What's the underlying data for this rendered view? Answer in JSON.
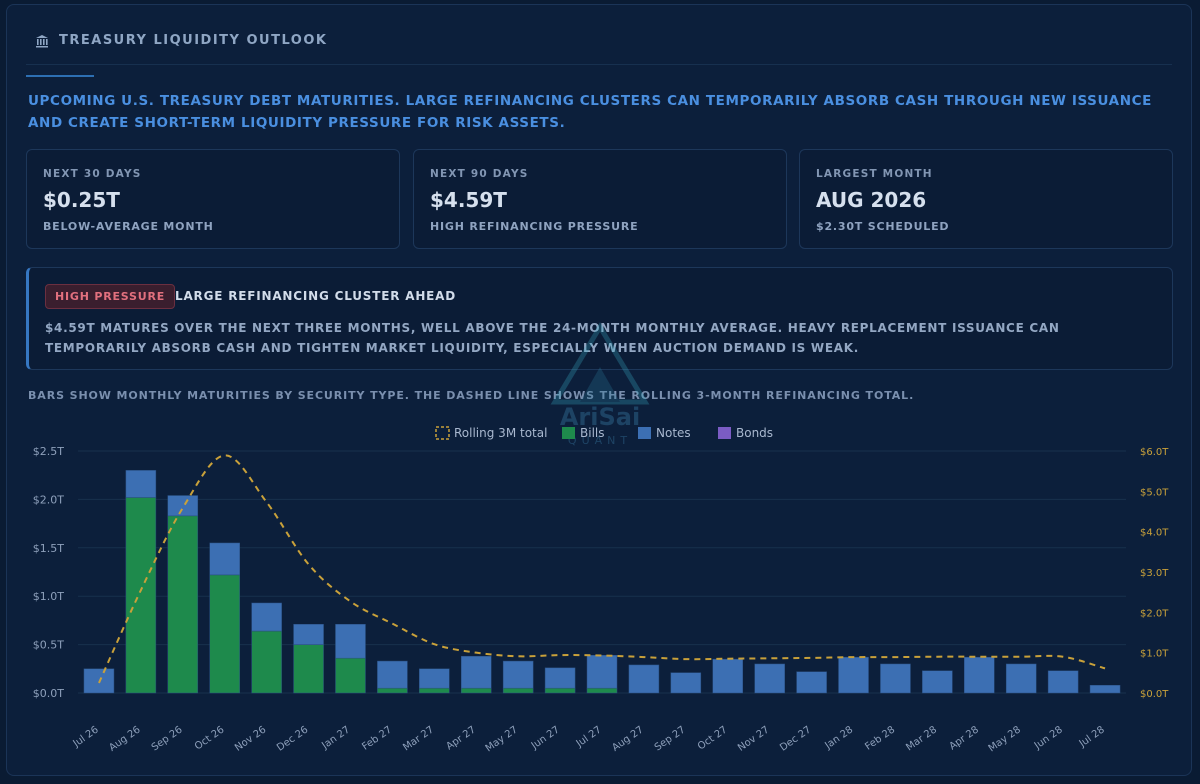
{
  "header": {
    "title": "TREASURY LIQUIDITY OUTLOOK",
    "icon": "bank-icon"
  },
  "intro": "Upcoming U.S. Treasury debt maturities. Large refinancing clusters can temporarily absorb cash through new issuance and create short-term liquidity pressure for risk assets.",
  "cards": [
    {
      "label": "NEXT 30 DAYS",
      "value": "$0.25T",
      "sub": "BELOW-AVERAGE MONTH"
    },
    {
      "label": "NEXT 90 DAYS",
      "value": "$4.59T",
      "sub": "HIGH REFINANCING PRESSURE"
    },
    {
      "label": "LARGEST MONTH",
      "value": "AUG 2026",
      "sub": "$2.30T SCHEDULED"
    }
  ],
  "alert": {
    "badge": "HIGH PRESSURE",
    "title": "LARGE REFINANCING CLUSTER AHEAD",
    "body": "$4.59T MATURES OVER THE NEXT THREE MONTHS, WELL ABOVE THE 24-MONTH MONTHLY AVERAGE. HEAVY REPLACEMENT ISSUANCE CAN TEMPORARILY ABSORB CASH AND TIGHTEN MARKET LIQUIDITY, ESPECIALLY WHEN AUCTION DEMAND IS WEAK."
  },
  "chart_note": "BARS SHOW MONTHLY MATURITIES BY SECURITY TYPE. THE DASHED LINE SHOWS THE ROLLING 3-MONTH REFINANCING TOTAL.",
  "watermark": {
    "line1": "AriSai",
    "line2": "QUANT"
  },
  "colors": {
    "bills": "#1e8a4c",
    "notes": "#3c6fb3",
    "bonds": "#7b5cc4",
    "rolling": "#c9a13a"
  },
  "chart_data": {
    "type": "bar",
    "stacked": true,
    "categories": [
      "Jul 26",
      "Aug 26",
      "Sep 26",
      "Oct 26",
      "Nov 26",
      "Dec 26",
      "Jan 27",
      "Feb 27",
      "Mar 27",
      "Apr 27",
      "May 27",
      "Jun 27",
      "Jul 27",
      "Aug 27",
      "Sep 27",
      "Oct 27",
      "Nov 27",
      "Dec 27",
      "Jan 28",
      "Feb 28",
      "Mar 28",
      "Apr 28",
      "May 28",
      "Jun 28",
      "Jul 28"
    ],
    "series": [
      {
        "name": "Bills",
        "axis": "left",
        "values": [
          0,
          2.02,
          1.83,
          1.22,
          0.64,
          0.5,
          0.36,
          0.05,
          0.05,
          0.05,
          0.05,
          0.05,
          0.05,
          0,
          0,
          0,
          0,
          0,
          0,
          0,
          0,
          0,
          0,
          0,
          0
        ]
      },
      {
        "name": "Notes",
        "axis": "left",
        "values": [
          0.25,
          0.28,
          0.21,
          0.33,
          0.29,
          0.21,
          0.35,
          0.28,
          0.2,
          0.33,
          0.28,
          0.21,
          0.34,
          0.29,
          0.21,
          0.35,
          0.3,
          0.22,
          0.37,
          0.3,
          0.23,
          0.37,
          0.3,
          0.23,
          0.08
        ]
      },
      {
        "name": "Bonds",
        "axis": "left",
        "values": [
          0,
          0,
          0,
          0,
          0,
          0,
          0,
          0,
          0,
          0,
          0,
          0,
          0,
          0,
          0,
          0,
          0,
          0,
          0,
          0,
          0,
          0,
          0,
          0,
          0
        ]
      },
      {
        "name": "Rolling 3M total",
        "type": "line",
        "dashed": true,
        "axis": "right",
        "values": [
          0.25,
          2.55,
          4.59,
          5.89,
          4.73,
          3.19,
          2.27,
          1.72,
          1.21,
          1.0,
          0.91,
          0.94,
          0.93,
          0.89,
          0.84,
          0.85,
          0.86,
          0.87,
          0.89,
          0.89,
          0.9,
          0.9,
          0.9,
          0.9,
          0.61
        ]
      }
    ],
    "yLeft": {
      "ticks": [
        "$0.0T",
        "$0.5T",
        "$1.0T",
        "$1.5T",
        "$2.0T",
        "$2.5T"
      ],
      "range": [
        0,
        2.5
      ]
    },
    "yRight": {
      "ticks": [
        "$0.0T",
        "$1.0T",
        "$2.0T",
        "$3.0T",
        "$4.0T",
        "$5.0T",
        "$6.0T"
      ],
      "range": [
        0,
        6
      ]
    },
    "legend": {
      "position": "top-center",
      "items": [
        "Rolling 3M total",
        "Bills",
        "Notes",
        "Bonds"
      ]
    },
    "grid": true
  }
}
